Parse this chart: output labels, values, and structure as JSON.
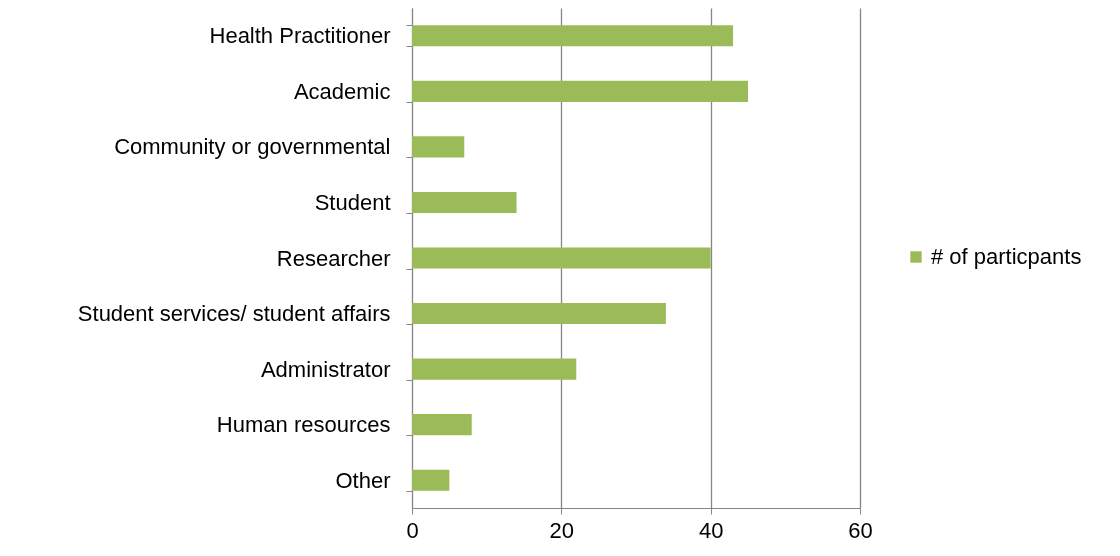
{
  "chart_data": {
    "type": "bar",
    "orientation": "horizontal",
    "categories": [
      "Health Practitioner",
      "Academic",
      "Community or governmental",
      "Student",
      "Researcher",
      "Student services/ student affairs",
      "Administrator",
      "Human resources",
      "Other"
    ],
    "series": [
      {
        "name": "# of particpants",
        "color": "#9bbb59",
        "values": [
          43,
          45,
          7,
          14,
          40,
          34,
          22,
          8,
          5
        ]
      }
    ],
    "xlim": [
      0,
      60
    ],
    "xticks": [
      0,
      20,
      40,
      60
    ],
    "grid": "x",
    "legend": "right"
  }
}
